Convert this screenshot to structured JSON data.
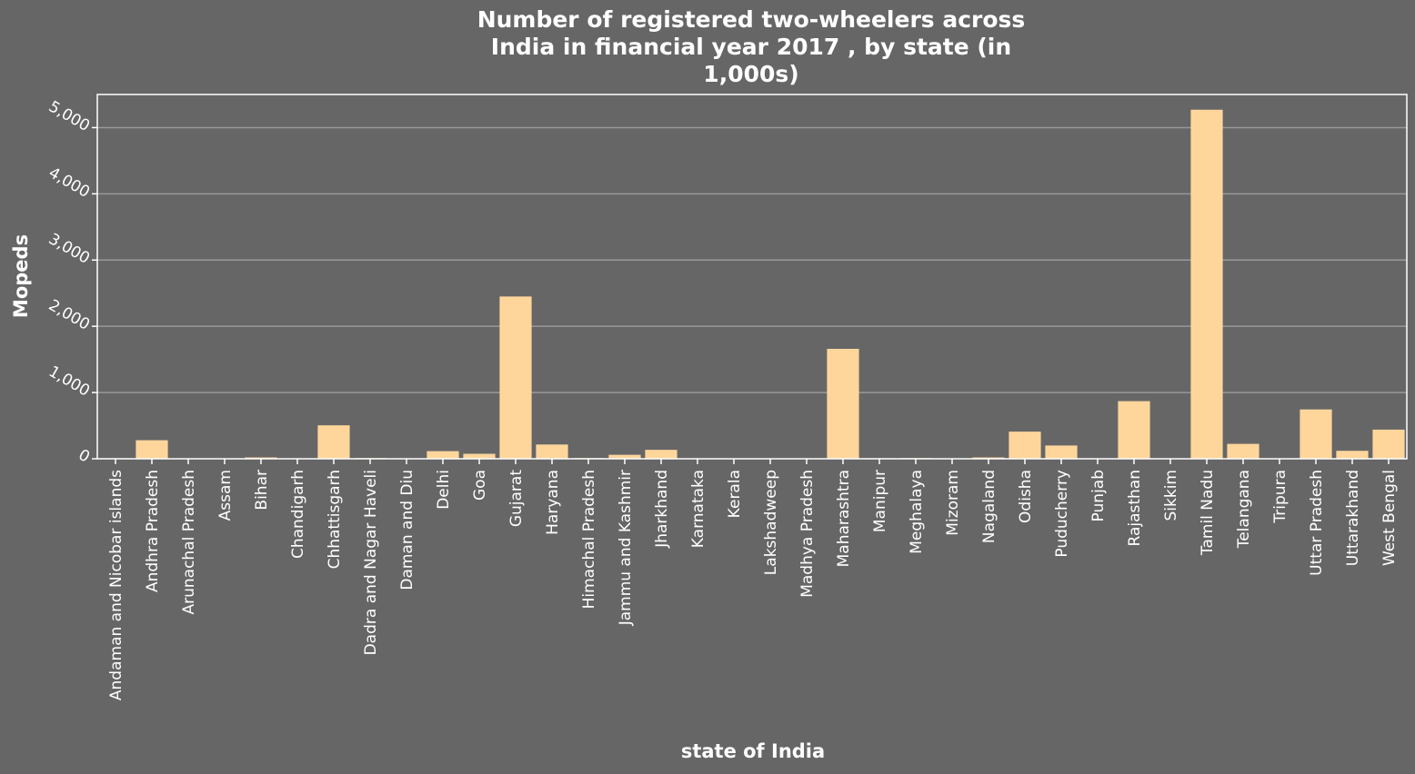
{
  "chart_data": {
    "type": "bar",
    "title_lines": [
      "Number of registered two-wheelers across",
      "India in financial year 2017 , by state (in",
      "1,000s)"
    ],
    "xlabel": "state of India",
    "ylabel": "Mopeds",
    "ylim": [
      0,
      5500
    ],
    "yticks": [
      0,
      1000,
      2000,
      3000,
      4000,
      5000
    ],
    "ytick_labels": [
      "0",
      "1,000",
      "2,000",
      "3,000",
      "4,000",
      "5,000"
    ],
    "grid": "horizontal",
    "legend": "none",
    "categories": [
      "Andaman and Nicobar islands",
      "Andhra Pradesh",
      "Arunachal Pradesh",
      "Assam",
      "Bihar",
      "Chandigarh",
      "Chhattisgarh",
      "Dadra and Nagar Haveli",
      "Daman and Diu",
      "Delhi",
      "Goa",
      "Gujarat",
      "Haryana",
      "Himachal Pradesh",
      "Jammu and Kashmir",
      "Jharkhand",
      "Karnataka",
      "Kerala",
      "Lakshadweep",
      "Madhya Pradesh",
      "Maharashtra",
      "Manipur",
      "Meghalaya",
      "Mizoram",
      "Nagaland",
      "Odisha",
      "Puducherry",
      "Punjab",
      "Rajasthan",
      "Sikkim",
      "Tamil Nadu",
      "Telangana",
      "Tripura",
      "Uttar Pradesh",
      "Uttarakhand",
      "West Bengal"
    ],
    "values": [
      8,
      280,
      2,
      0,
      20,
      5,
      505,
      10,
      5,
      115,
      75,
      2450,
      215,
      10,
      60,
      135,
      0,
      0,
      0,
      0,
      1660,
      8,
      10,
      0,
      20,
      410,
      200,
      0,
      870,
      0,
      5270,
      225,
      5,
      745,
      120,
      440
    ],
    "colors": {
      "background": "#666666",
      "bar": "#fed69c",
      "grid": "#999999",
      "axis": "#ffffff",
      "text": "#ffffff"
    }
  }
}
